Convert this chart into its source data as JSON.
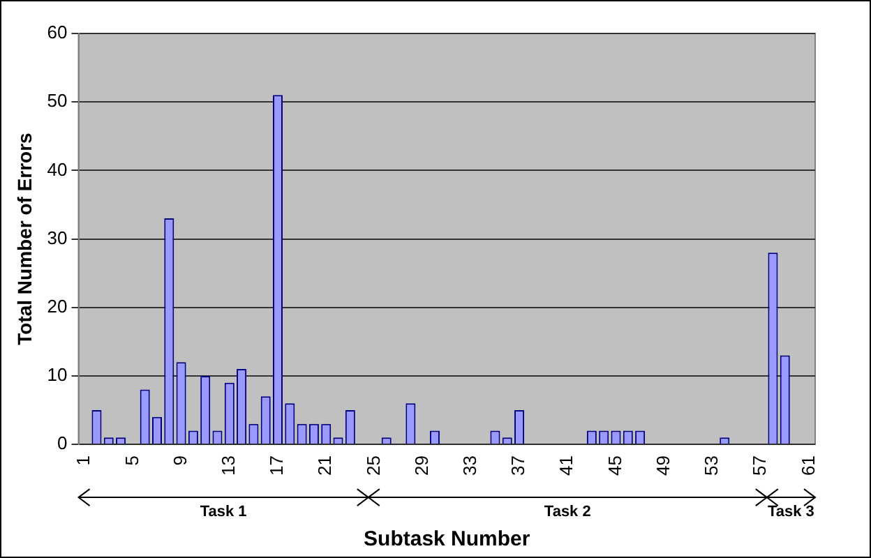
{
  "chart_data": {
    "type": "bar",
    "xlabel": "Subtask Number",
    "ylabel": "Total Number of Errors",
    "categories": [
      "1",
      null,
      null,
      null,
      "5",
      null,
      null,
      null,
      "9",
      null,
      null,
      null,
      "13",
      null,
      null,
      null,
      "17",
      null,
      null,
      null,
      "21",
      null,
      null,
      null,
      "25",
      null,
      null,
      null,
      "29",
      null,
      null,
      null,
      "33",
      null,
      null,
      null,
      "37",
      null,
      null,
      null,
      "41",
      null,
      null,
      null,
      "45",
      null,
      null,
      null,
      "49",
      null,
      null,
      null,
      "53",
      null,
      null,
      null,
      "57",
      null,
      null,
      null,
      "61"
    ],
    "values": [
      0,
      5,
      1,
      1,
      0,
      8,
      4,
      33,
      12,
      2,
      10,
      2,
      9,
      11,
      3,
      7,
      51,
      6,
      3,
      3,
      3,
      1,
      5,
      0,
      0,
      1,
      0,
      6,
      0,
      2,
      0,
      0,
      0,
      0,
      2,
      1,
      5,
      0,
      0,
      0,
      0,
      0,
      2,
      2,
      2,
      2,
      2,
      0,
      0,
      0,
      0,
      0,
      0,
      1,
      0,
      0,
      0,
      28,
      13,
      0,
      0
    ],
    "color": "#9999ff",
    "ylim": [
      0,
      60
    ],
    "yticks": [
      0,
      10,
      20,
      30,
      40,
      50,
      60
    ],
    "grid": "y",
    "legend": false,
    "annotations": [
      "Task 1",
      "Task 2",
      "Task 3"
    ]
  }
}
